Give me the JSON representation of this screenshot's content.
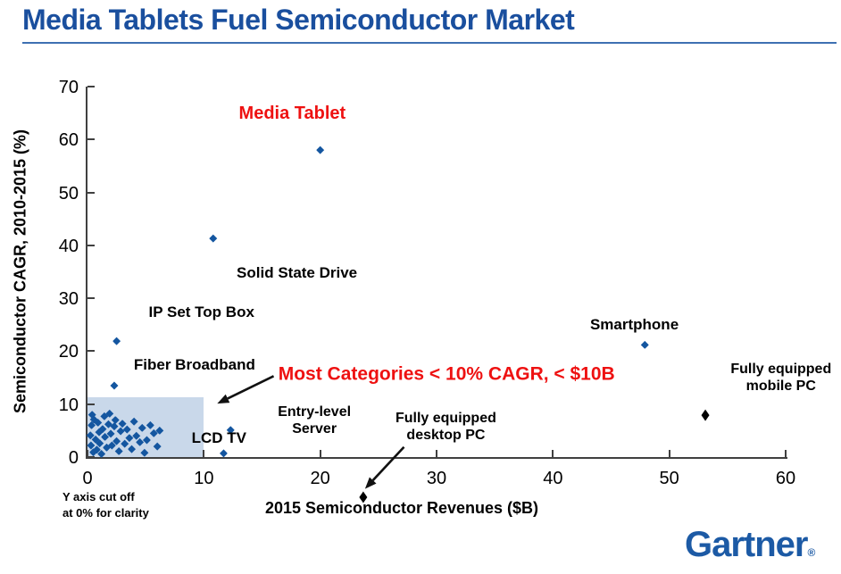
{
  "page": {
    "title": "Media Tablets Fuel Semiconductor Market"
  },
  "branding": {
    "logo_text": "Gartner",
    "registered_mark": "®"
  },
  "colors": {
    "title_blue": "#1A4F9E",
    "divider_blue": "#3E70B2",
    "marker_blue": "#1456A0",
    "marker_black": "#000000",
    "callout_red": "#EE1111",
    "region_fill": "#C9D8EA",
    "axis_gray": "#404040",
    "logo_blue": "#1C5AA5"
  },
  "chart_data": {
    "type": "scatter",
    "title": "Media Tablets Fuel Semiconductor Market",
    "xlabel": "2015 Semiconductor Revenues ($B)",
    "ylabel": "Semiconductor CAGR, 2010-2015 (%)",
    "xlim": [
      0,
      60
    ],
    "ylim": [
      0,
      70
    ],
    "x_ticks": [
      0,
      10,
      20,
      30,
      40,
      50,
      60
    ],
    "y_ticks": [
      0,
      10,
      20,
      30,
      40,
      50,
      60,
      70
    ],
    "grid": false,
    "legend": "none",
    "footnote": "Y axis cut off\nat 0% for clarity",
    "highlight_region": {
      "x0": 0,
      "x1": 10,
      "y0": 0,
      "y1": 11.3,
      "fill": "#C9D8EA",
      "meaning": "Most Categories < 10% CAGR, < $10B"
    },
    "series": [
      {
        "name": "labeled-categories",
        "marker": "diamond",
        "color": "#1456A0",
        "points": [
          {
            "label": "Media Tablet",
            "x": 20,
            "y": 58
          },
          {
            "label": "Solid State Drive",
            "x": 10.8,
            "y": 41.3
          },
          {
            "label": "IP Set Top Box",
            "x": 2.5,
            "y": 21.9
          },
          {
            "label": "Fiber Broadband",
            "x": 2.3,
            "y": 13.5
          },
          {
            "label": "Smartphone",
            "x": 47.9,
            "y": 21.2
          },
          {
            "label": "LCD TV",
            "x": 12.3,
            "y": 5.1
          },
          {
            "label": "LCD TV",
            "x": 11.7,
            "y": 0.7
          }
        ]
      },
      {
        "name": "pc-categories",
        "marker": "diamond-tall",
        "color": "#000000",
        "points": [
          {
            "label": "Fully equipped mobile PC",
            "x": 53.1,
            "y": 7.9
          },
          {
            "label": "Fully equipped desktop PC",
            "x": 23.7,
            "y": -7.6,
            "note": "plotted below axis, cut off at 0%"
          }
        ]
      },
      {
        "name": "other-categories-cluster",
        "marker": "diamond",
        "color": "#1456A0",
        "points": [
          [
            0.25,
            4.1
          ],
          [
            0.3,
            2.2
          ],
          [
            0.35,
            6.0
          ],
          [
            0.5,
            0.9
          ],
          [
            0.55,
            7.1
          ],
          [
            0.7,
            3.3
          ],
          [
            0.8,
            1.4
          ],
          [
            0.9,
            6.5
          ],
          [
            1.0,
            4.7
          ],
          [
            1.05,
            2.6
          ],
          [
            1.2,
            0.6
          ],
          [
            1.3,
            5.3
          ],
          [
            1.45,
            7.7
          ],
          [
            1.5,
            3.8
          ],
          [
            1.65,
            1.8
          ],
          [
            1.8,
            6.2
          ],
          [
            1.9,
            8.2
          ],
          [
            2.0,
            4.4
          ],
          [
            2.1,
            2.2
          ],
          [
            2.3,
            5.8
          ],
          [
            2.4,
            7.0
          ],
          [
            2.5,
            3.0
          ],
          [
            2.7,
            1.1
          ],
          [
            2.85,
            4.9
          ],
          [
            3.0,
            6.3
          ],
          [
            3.2,
            2.5
          ],
          [
            3.4,
            5.2
          ],
          [
            3.6,
            3.6
          ],
          [
            3.8,
            1.5
          ],
          [
            4.0,
            6.7
          ],
          [
            4.2,
            4.0
          ],
          [
            4.5,
            2.8
          ],
          [
            4.7,
            5.5
          ],
          [
            4.9,
            0.8
          ],
          [
            5.1,
            3.2
          ],
          [
            5.4,
            6.0
          ],
          [
            5.7,
            4.5
          ],
          [
            6.0,
            2.0
          ],
          [
            6.2,
            5.0
          ],
          [
            0.4,
            8.0
          ]
        ]
      }
    ],
    "labels": [
      {
        "id": "media-tablet",
        "text": "Media Tablet",
        "x": 17.6,
        "y": 64.8,
        "color": "#EE1111",
        "size": 20
      },
      {
        "id": "solid-state-drive",
        "text": "Solid State Drive",
        "x": 18.0,
        "y": 34.7,
        "size": 17
      },
      {
        "id": "ip-set-top-box",
        "text": "IP Set Top Box",
        "x": 9.8,
        "y": 27.4,
        "size": 17
      },
      {
        "id": "fiber-broadband",
        "text": "Fiber Broadband",
        "x": 9.2,
        "y": 17.3,
        "size": 17
      },
      {
        "id": "smartphone",
        "text": "Smartphone",
        "x": 47.0,
        "y": 24.9,
        "size": 17
      },
      {
        "id": "fully-equipped-mobile-pc",
        "text": "Fully equipped\nmobile PC",
        "x": 59.6,
        "y": 14.8,
        "size": 16
      },
      {
        "id": "entry-level-server",
        "text": "Entry-level\nServer",
        "x": 19.5,
        "y": 6.8,
        "size": 16
      },
      {
        "id": "fully-equipped-desktop-pc",
        "text": "Fully equipped\ndesktop PC",
        "x": 30.8,
        "y": 5.5,
        "size": 16
      },
      {
        "id": "lcd-tv",
        "text": "LCD TV",
        "x": 11.3,
        "y": 3.5,
        "size": 17
      },
      {
        "id": "most-categories-callout",
        "text": "Most Categories < 10% CAGR, < $10B",
        "x": 16.4,
        "y": 15.6,
        "color": "#EE1111",
        "size": 21,
        "align": "left"
      }
    ],
    "arrows": [
      {
        "id": "callout-to-region",
        "from": [
          16.0,
          15.3
        ],
        "to": [
          11.15,
          10.1
        ]
      },
      {
        "id": "desktop-pc-to-point",
        "from": [
          27.2,
          1.9
        ],
        "to": [
          23.85,
          -6.0
        ]
      }
    ]
  }
}
